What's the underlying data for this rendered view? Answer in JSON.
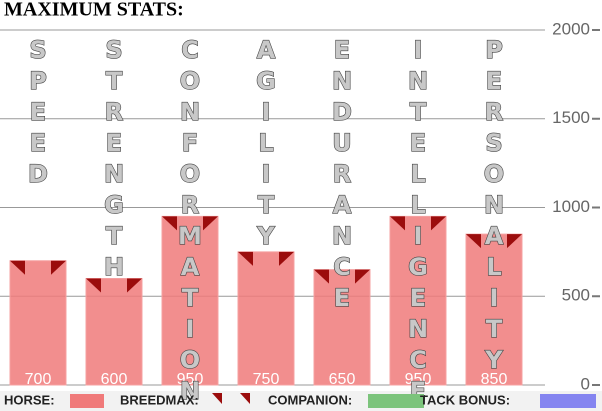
{
  "chart_data": {
    "type": "bar",
    "title": "MAXIMUM STATS:",
    "categories": [
      "SPEED",
      "STRENGTH",
      "CONFORMATION",
      "AGILITY",
      "ENDURANCE",
      "INTELLIGENCE",
      "PERSONALITY"
    ],
    "series": [
      {
        "name": "HORSE:",
        "color": "#f07a7a",
        "values": [
          700,
          600,
          950,
          750,
          650,
          950,
          850
        ]
      }
    ],
    "breedmax": {
      "name": "BREEDMAX:",
      "color": "#9b0d0d"
    },
    "legend_items": [
      {
        "name": "COMPANION:",
        "color": "#7cc47c"
      },
      {
        "name": "TACK BONUS:",
        "color": "#8585f0"
      }
    ],
    "ylim": [
      0,
      2000
    ],
    "yticks": [
      0,
      500,
      1000,
      1500,
      2000
    ],
    "grid": true
  }
}
